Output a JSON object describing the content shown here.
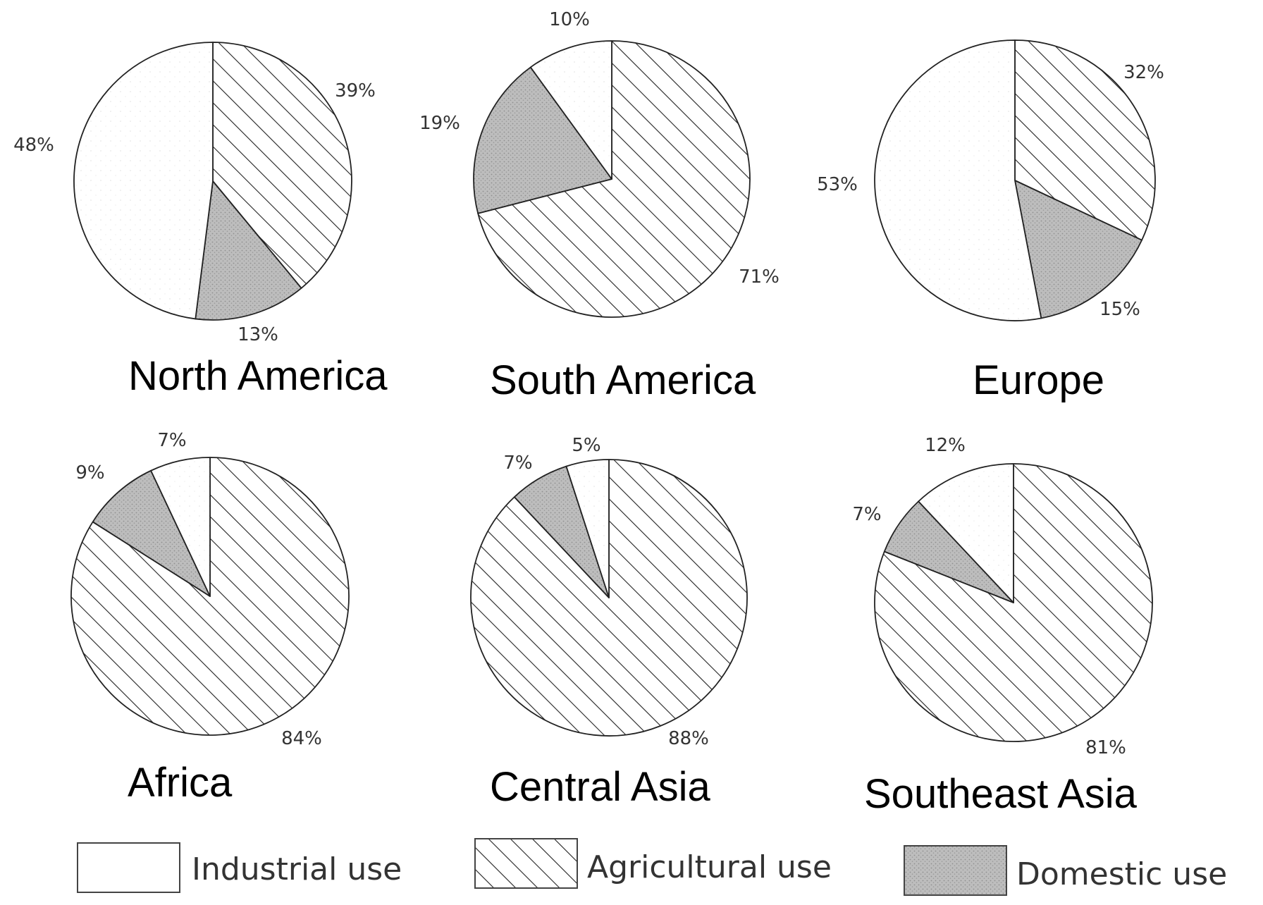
{
  "chart_data": [
    {
      "type": "pie",
      "title": "North America",
      "categories": [
        "Industrial use",
        "Agricultural use",
        "Domestic use"
      ],
      "values": [
        48,
        39,
        13
      ],
      "data_labels": [
        "48%",
        "39%",
        "13%"
      ]
    },
    {
      "type": "pie",
      "title": "South America",
      "categories": [
        "Industrial use",
        "Agricultural use",
        "Domestic use"
      ],
      "values": [
        10,
        71,
        19
      ],
      "data_labels": [
        "10%",
        "71%",
        "19%"
      ]
    },
    {
      "type": "pie",
      "title": "Europe",
      "categories": [
        "Industrial use",
        "Agricultural use",
        "Domestic use"
      ],
      "values": [
        53,
        32,
        15
      ],
      "data_labels": [
        "53%",
        "32%",
        "15%"
      ]
    },
    {
      "type": "pie",
      "title": "Africa",
      "categories": [
        "Industrial use",
        "Agricultural use",
        "Domestic use"
      ],
      "values": [
        7,
        84,
        9
      ],
      "data_labels": [
        "7%",
        "84%",
        "9%"
      ]
    },
    {
      "type": "pie",
      "title": "Central Asia",
      "categories": [
        "Industrial use",
        "Agricultural use",
        "Domestic use"
      ],
      "values": [
        5,
        88,
        7
      ],
      "data_labels": [
        "5%",
        "88%",
        "7%"
      ]
    },
    {
      "type": "pie",
      "title": "Southeast Asia",
      "categories": [
        "Industrial use",
        "Agricultural use",
        "Domestic use"
      ],
      "values": [
        12,
        81,
        7
      ],
      "data_labels": [
        "12%",
        "81%",
        "7%"
      ]
    }
  ],
  "legend": {
    "placement": "bottom",
    "items": [
      {
        "label": "Industrial use",
        "fill": "white"
      },
      {
        "label": "Agricultural use",
        "fill": "diagonal-hatch"
      },
      {
        "label": "Domestic use",
        "fill": "gray-stipple"
      }
    ]
  },
  "colors": {
    "industrial": "#ffffff",
    "agricultural_hatch": "#222222",
    "domestic": "#bdbdbd",
    "outline": "#222222"
  }
}
